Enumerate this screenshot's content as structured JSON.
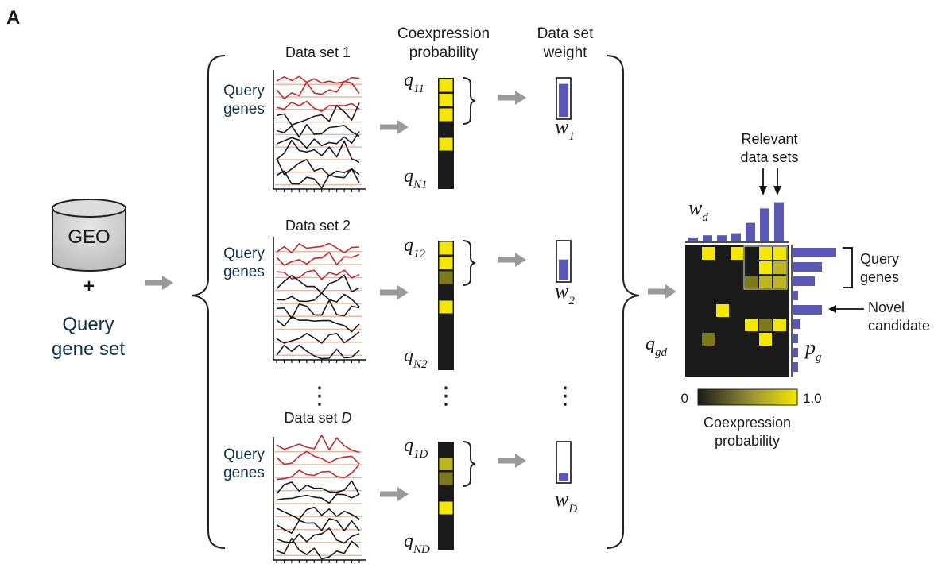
{
  "panel_letter": "A",
  "geo_label": "GEO",
  "plus_sign": "+",
  "query_gene_set": [
    "Query",
    "gene set"
  ],
  "column_headers": {
    "coexpression": [
      "Coexpression",
      "probability"
    ],
    "weight": [
      "Data set",
      "weight"
    ]
  },
  "datasets": [
    {
      "title": "Data set 1",
      "query_label": [
        "Query",
        "genes"
      ],
      "q_top": {
        "base": "q",
        "sub": "11"
      },
      "q_bottom": {
        "base": "q",
        "sub": "N1"
      },
      "weight_symbol": {
        "base": "w",
        "sub": "1"
      },
      "weight_fraction": 0.9,
      "column_cells": [
        "#f5e800",
        "#f5e800",
        "#f5e800",
        "#1a1a1a",
        "#f5e800",
        "#1a1a1a",
        "#1a1a1a",
        "#1a1a1a",
        "#1a1a1a"
      ]
    },
    {
      "title": "Data set 2",
      "query_label": [
        "Query",
        "genes"
      ],
      "q_top": {
        "base": "q",
        "sub": "12"
      },
      "q_bottom": {
        "base": "q",
        "sub": "N2"
      },
      "weight_symbol": {
        "base": "w",
        "sub": "2"
      },
      "weight_fraction": 0.55,
      "column_cells": [
        "#f5e800",
        "#f5e800",
        "#7d7a1c",
        "#1a1a1a",
        "#f5e800",
        "#1a1a1a",
        "#1a1a1a",
        "#1a1a1a",
        "#1a1a1a"
      ]
    },
    {
      "title_prefix": "Data set ",
      "title_italic": "D",
      "query_label": [
        "Query",
        "genes"
      ],
      "q_top": {
        "base": "q",
        "sub": "1D"
      },
      "q_bottom": {
        "base": "q",
        "sub": "ND"
      },
      "weight_symbol": {
        "base": "w",
        "sub": "D"
      },
      "weight_fraction": 0.2,
      "column_cells": [
        "#1a1a1a",
        "#bdb522",
        "#7d7a1c",
        "#1a1a1a",
        "#f5e800",
        "#1a1a1a",
        "#1a1a1a",
        "#1a1a1a",
        "#1a1a1a"
      ]
    }
  ],
  "ellipsis": "⋮",
  "relevant_label": [
    "Relevant",
    "data sets"
  ],
  "wd_symbol": {
    "base": "w",
    "sub": "d"
  },
  "qgd_symbol": {
    "base": "q",
    "sub": "gd"
  },
  "pg_symbol": {
    "base": "p",
    "sub": "g"
  },
  "matrix_query_label": [
    "Query",
    "genes"
  ],
  "novel_label": [
    "Novel",
    "candidate"
  ],
  "colorbar": {
    "min": "0",
    "max": "1.0",
    "label": [
      "Coexpression",
      "probability"
    ]
  },
  "colors": {
    "query_red": "#c8282d",
    "background_black": "#1a1a1a",
    "yellow": "#f5e800",
    "weight_blue": "#5a58b4",
    "baseline_peach": "#e8b9a0",
    "arrow_gray": "#9a9a9a",
    "query_text": "#0e3046"
  },
  "weight_bars_top": [
    0.1,
    0.15,
    0.15,
    0.2,
    0.45,
    0.8,
    0.95
  ],
  "weight_bars_right": [
    0.9,
    0.6,
    0.45,
    0.1,
    0.6,
    0.15,
    0.1,
    0.1,
    0.1
  ],
  "matrix_cells": [
    [
      "#1a1a1a",
      "#f5e800",
      "#1a1a1a",
      "#f5e800",
      "#1a1a1a",
      "#f5e800",
      "#f5e800"
    ],
    [
      "#1a1a1a",
      "#1a1a1a",
      "#1a1a1a",
      "#1a1a1a",
      "#1a1a1a",
      "#f5e800",
      "#bdb522"
    ],
    [
      "#1a1a1a",
      "#1a1a1a",
      "#1a1a1a",
      "#1a1a1a",
      "#7d7a1c",
      "#bdb522",
      "#bdb522"
    ],
    [
      "#1a1a1a",
      "#1a1a1a",
      "#1a1a1a",
      "#1a1a1a",
      "#1a1a1a",
      "#1a1a1a",
      "#1a1a1a"
    ],
    [
      "#1a1a1a",
      "#1a1a1a",
      "#f5e800",
      "#1a1a1a",
      "#1a1a1a",
      "#1a1a1a",
      "#1a1a1a"
    ],
    [
      "#1a1a1a",
      "#1a1a1a",
      "#1a1a1a",
      "#1a1a1a",
      "#f5e800",
      "#7d7a1c",
      "#f5e800"
    ],
    [
      "#1a1a1a",
      "#7d7a1c",
      "#1a1a1a",
      "#1a1a1a",
      "#1a1a1a",
      "#f5e800",
      "#1a1a1a"
    ],
    [
      "#1a1a1a",
      "#1a1a1a",
      "#1a1a1a",
      "#1a1a1a",
      "#1a1a1a",
      "#1a1a1a",
      "#1a1a1a"
    ],
    [
      "#1a1a1a",
      "#1a1a1a",
      "#1a1a1a",
      "#1a1a1a",
      "#1a1a1a",
      "#1a1a1a",
      "#1a1a1a"
    ]
  ]
}
